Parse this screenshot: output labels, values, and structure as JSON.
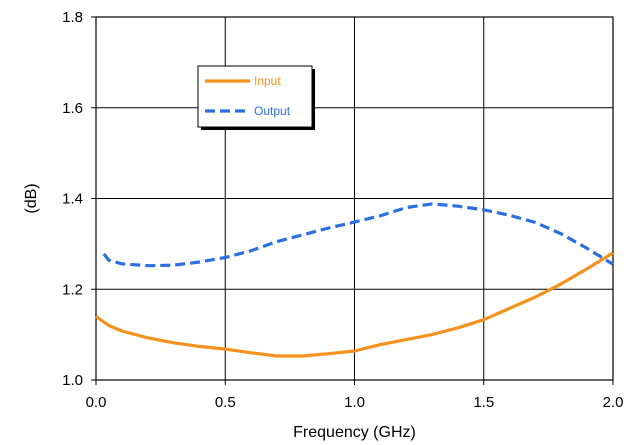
{
  "chart_data": {
    "type": "line",
    "xlabel": "Frequency (GHz)",
    "ylabel": "(dB)",
    "xlim": [
      0.0,
      2.0
    ],
    "ylim": [
      1.0,
      1.8
    ],
    "x_ticks": [
      "0.0",
      "0.5",
      "1.0",
      "1.5",
      "2.0"
    ],
    "y_ticks": [
      "1.0",
      "1.2",
      "1.4",
      "1.6",
      "1.8"
    ],
    "grid": true,
    "legend_position": "upper-left",
    "series": [
      {
        "name": "Input",
        "color": "#F5921E",
        "style": "solid",
        "x": [
          0.0,
          0.05,
          0.1,
          0.2,
          0.3,
          0.4,
          0.5,
          0.6,
          0.7,
          0.8,
          0.9,
          1.0,
          1.1,
          1.2,
          1.3,
          1.4,
          1.5,
          1.6,
          1.7,
          1.8,
          1.9,
          2.0
        ],
        "y": [
          1.14,
          1.12,
          1.108,
          1.093,
          1.082,
          1.074,
          1.068,
          1.06,
          1.053,
          1.053,
          1.058,
          1.064,
          1.078,
          1.089,
          1.1,
          1.115,
          1.133,
          1.158,
          1.183,
          1.212,
          1.245,
          1.28
        ]
      },
      {
        "name": "Output",
        "color": "#2B6FE0",
        "style": "dashed",
        "x": [
          0.03,
          0.05,
          0.1,
          0.2,
          0.3,
          0.4,
          0.5,
          0.6,
          0.7,
          0.8,
          0.9,
          1.0,
          1.1,
          1.2,
          1.3,
          1.4,
          1.5,
          1.6,
          1.7,
          1.8,
          1.9,
          2.0
        ],
        "y": [
          1.278,
          1.264,
          1.256,
          1.252,
          1.253,
          1.26,
          1.27,
          1.285,
          1.305,
          1.32,
          1.335,
          1.348,
          1.362,
          1.38,
          1.388,
          1.383,
          1.375,
          1.363,
          1.347,
          1.322,
          1.29,
          1.255
        ]
      }
    ]
  }
}
